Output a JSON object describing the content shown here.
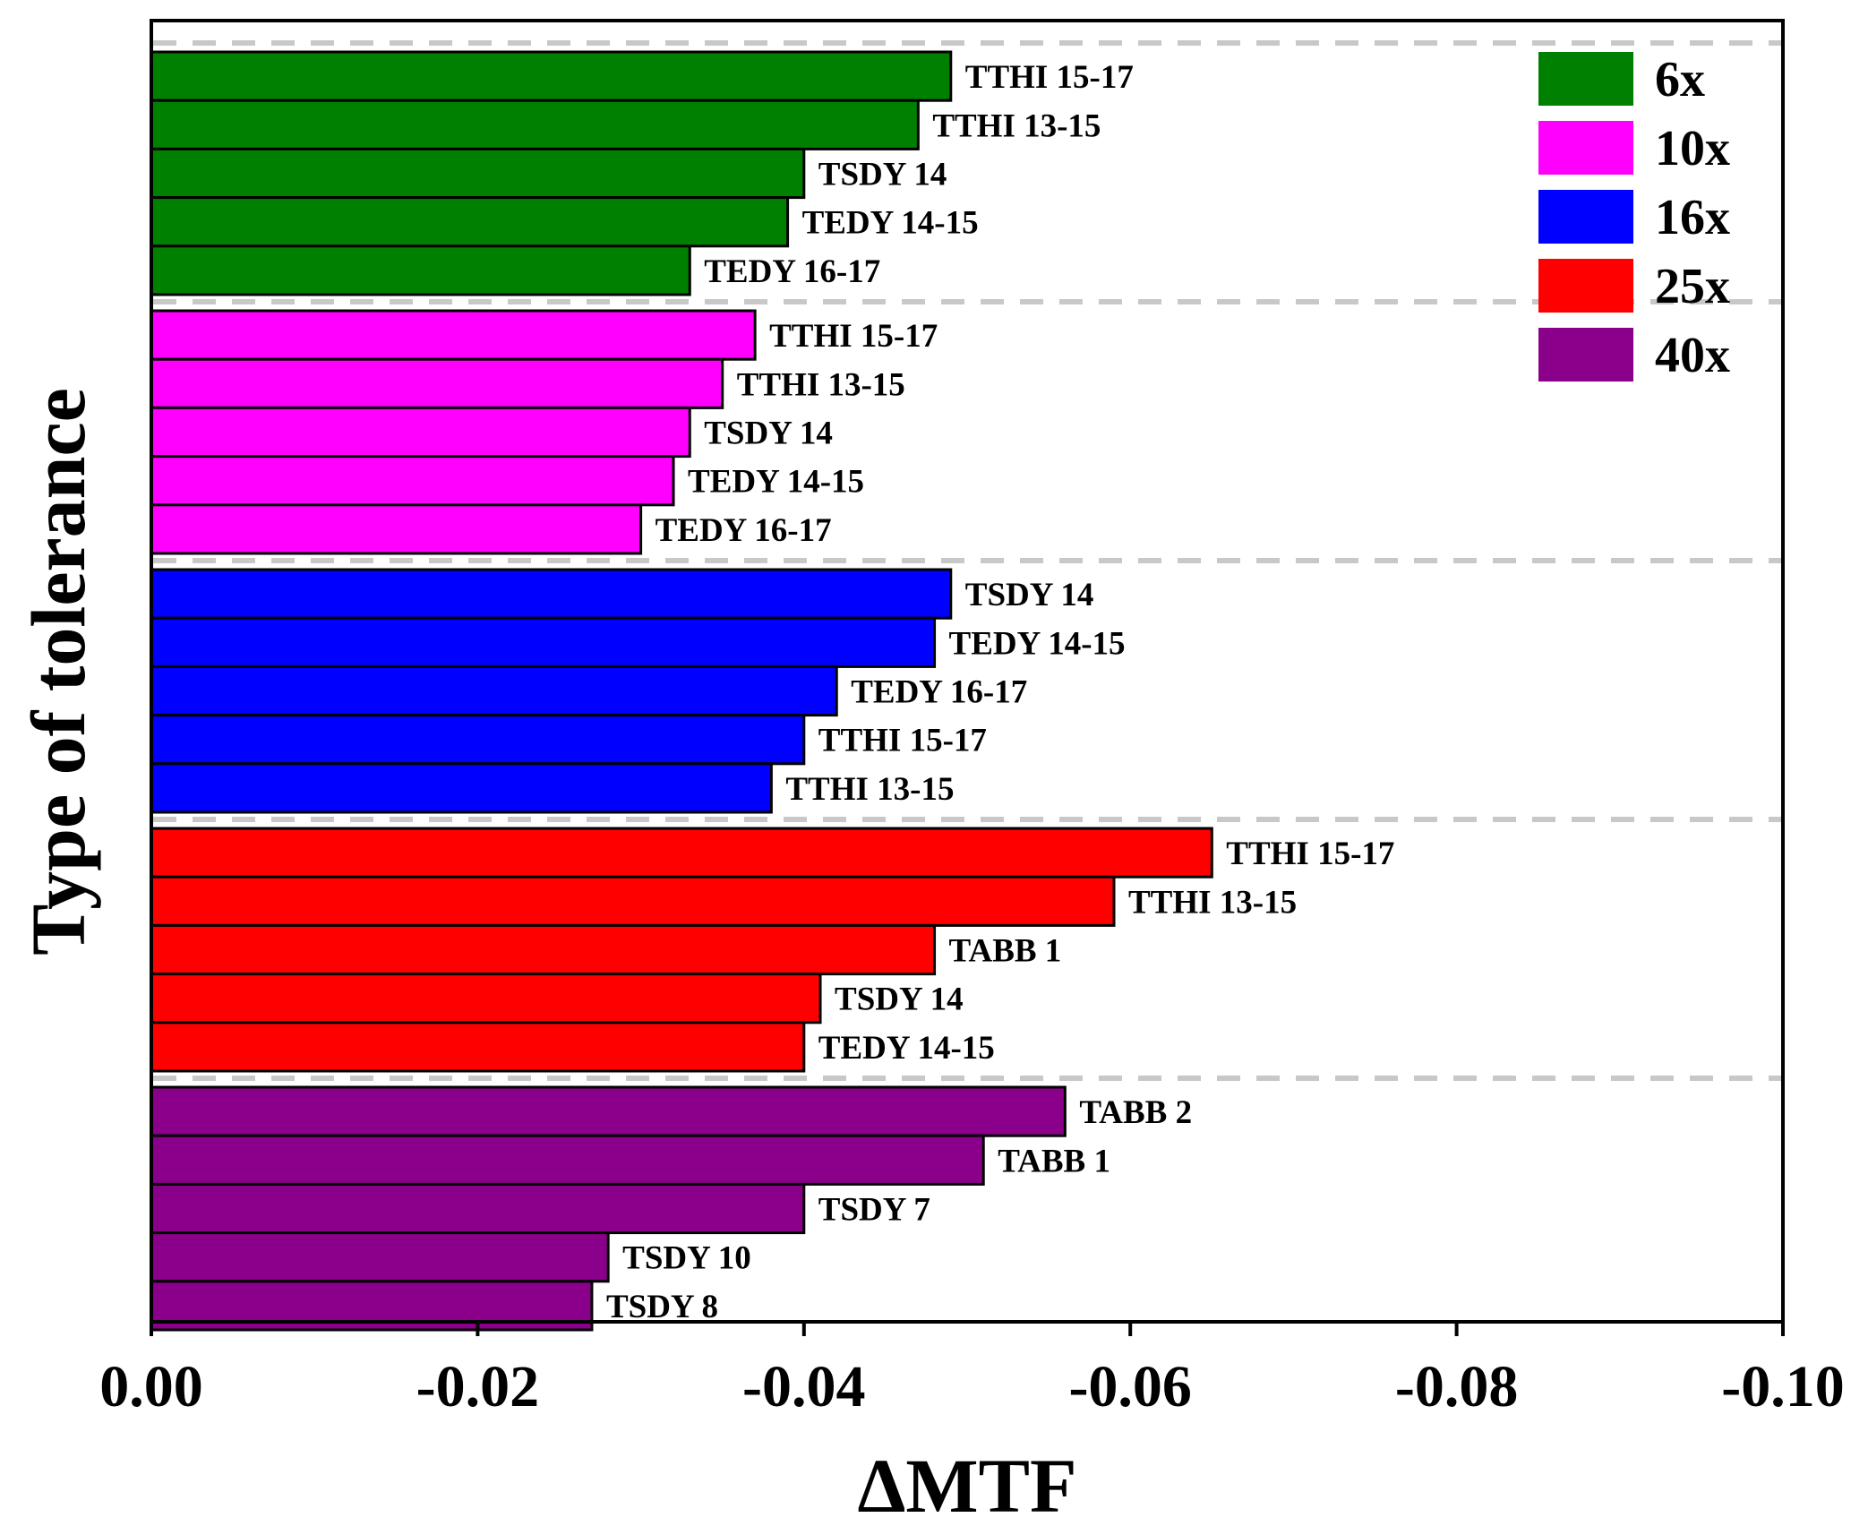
{
  "chart_data": {
    "type": "bar",
    "orientation": "horizontal",
    "xlabel": "ΔMTF",
    "ylabel": "Type of tolerance",
    "xlim": [
      0.0,
      -0.1
    ],
    "xticks": [
      0.0,
      -0.02,
      -0.04,
      -0.06,
      -0.08,
      -0.1
    ],
    "xtick_labels": [
      "0.00",
      "-0.02",
      "-0.04",
      "-0.06",
      "-0.08",
      "-0.10"
    ],
    "grid": false,
    "group_separators": "dashed",
    "legend_position": "top-right",
    "groups": [
      {
        "name": "6x",
        "color": "#008000",
        "bars": [
          {
            "label": "TTHI 15-17",
            "value": -0.049
          },
          {
            "label": "TTHI 13-15",
            "value": -0.047
          },
          {
            "label": "TSDY 14",
            "value": -0.04
          },
          {
            "label": "TEDY 14-15",
            "value": -0.039
          },
          {
            "label": "TEDY 16-17",
            "value": -0.033
          }
        ]
      },
      {
        "name": "10x",
        "color": "#FF00FF",
        "bars": [
          {
            "label": "TTHI 15-17",
            "value": -0.037
          },
          {
            "label": "TTHI 13-15",
            "value": -0.035
          },
          {
            "label": "TSDY 14",
            "value": -0.033
          },
          {
            "label": "TEDY 14-15",
            "value": -0.032
          },
          {
            "label": "TEDY 16-17",
            "value": -0.03
          }
        ]
      },
      {
        "name": "16x",
        "color": "#0000FF",
        "bars": [
          {
            "label": "TSDY 14",
            "value": -0.049
          },
          {
            "label": "TEDY 14-15",
            "value": -0.048
          },
          {
            "label": "TEDY 16-17",
            "value": -0.042
          },
          {
            "label": "TTHI 15-17",
            "value": -0.04
          },
          {
            "label": "TTHI 13-15",
            "value": -0.038
          }
        ]
      },
      {
        "name": "25x",
        "color": "#FF0000",
        "bars": [
          {
            "label": "TTHI 15-17",
            "value": -0.065
          },
          {
            "label": "TTHI 13-15",
            "value": -0.059
          },
          {
            "label": "TABB 1",
            "value": -0.048
          },
          {
            "label": "TSDY 14",
            "value": -0.041
          },
          {
            "label": "TEDY 14-15",
            "value": -0.04
          }
        ]
      },
      {
        "name": "40x",
        "color": "#8B008B",
        "bars": [
          {
            "label": "TABB 2",
            "value": -0.056
          },
          {
            "label": "TABB 1",
            "value": -0.051
          },
          {
            "label": "TSDY 7",
            "value": -0.04
          },
          {
            "label": "TSDY 10",
            "value": -0.028
          },
          {
            "label": "TSDY 8",
            "value": -0.027
          }
        ]
      }
    ]
  }
}
